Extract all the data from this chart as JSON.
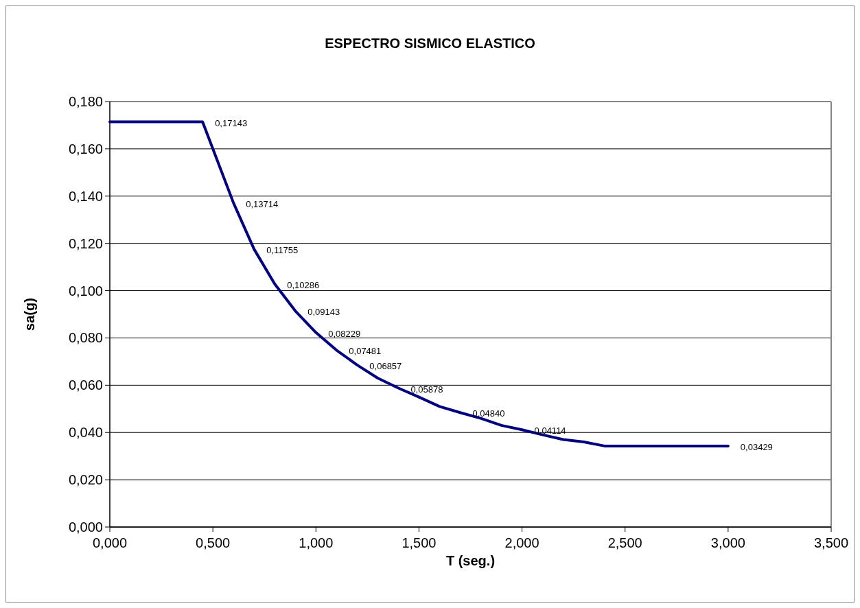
{
  "chart_data": {
    "type": "line",
    "title": "ESPECTRO SISMICO ELASTICO",
    "xlabel": "T (seg.)",
    "ylabel": "sa(g)",
    "x": [
      0,
      0.45,
      0.6,
      0.7,
      0.8,
      0.9,
      1.0,
      1.1,
      1.2,
      1.3,
      1.4,
      1.5,
      1.6,
      1.7,
      1.8,
      1.9,
      2.0,
      2.1,
      2.2,
      2.3,
      2.4,
      3.0
    ],
    "series": [
      {
        "color": "#000080",
        "values": [
          0.17143,
          0.17143,
          0.13714,
          0.11755,
          0.10286,
          0.09143,
          0.08229,
          0.07481,
          0.06857,
          0.063,
          0.05878,
          0.055,
          0.051,
          0.0484,
          0.046,
          0.043,
          0.04114,
          0.039,
          0.037,
          0.036,
          0.03429,
          0.03429
        ],
        "value_labels": [
          null,
          "0,17143",
          "0,13714",
          "0,11755",
          "0,10286",
          "0,09143",
          "0,08229",
          "0,07481",
          "0,06857",
          null,
          "0,05878",
          null,
          null,
          "0,04840",
          null,
          null,
          "0,04114",
          null,
          null,
          null,
          null,
          "0,03429"
        ]
      }
    ],
    "xlim": [
      0,
      3.5
    ],
    "xticks": [
      {
        "value": 0,
        "label": "0,000"
      },
      {
        "value": 0.5,
        "label": "0,500"
      },
      {
        "value": 1,
        "label": "1,000"
      },
      {
        "value": 1.5,
        "label": "1,500"
      },
      {
        "value": 2,
        "label": "2,000"
      },
      {
        "value": 2.5,
        "label": "2,500"
      },
      {
        "value": 3,
        "label": "3,000"
      },
      {
        "value": 3.5,
        "label": "3,500"
      }
    ],
    "ylim": [
      0,
      0.18
    ],
    "yticks": [
      {
        "value": 0,
        "label": "0,000"
      },
      {
        "value": 0.02,
        "label": "0,020"
      },
      {
        "value": 0.04,
        "label": "0,040"
      },
      {
        "value": 0.06,
        "label": "0,060"
      },
      {
        "value": 0.08,
        "label": "0,080"
      },
      {
        "value": 0.1,
        "label": "0,100"
      },
      {
        "value": 0.12,
        "label": "0,120"
      },
      {
        "value": 0.14,
        "label": "0,140"
      },
      {
        "value": 0.16,
        "label": "0,160"
      },
      {
        "value": 0.18,
        "label": "0,180"
      }
    ],
    "grid": "y",
    "marker": "none",
    "line_style": "solid"
  }
}
